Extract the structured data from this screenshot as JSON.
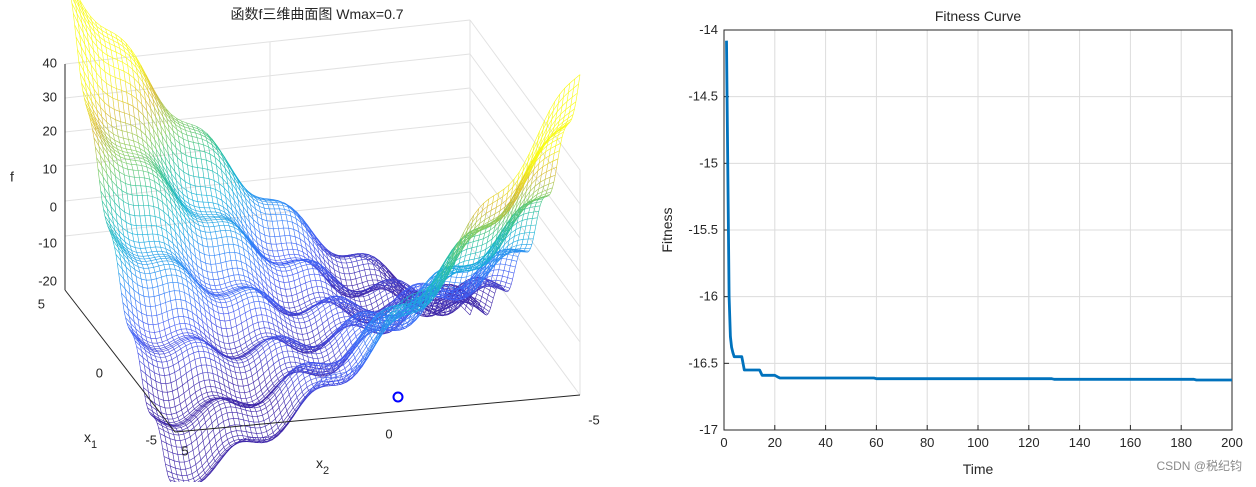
{
  "watermark": "CSDN @税纪钧",
  "colors": {
    "line": "#0072BD",
    "grid": "#dcdcdc",
    "axis": "#262626",
    "marker": "#0000ff"
  },
  "chart_data": [
    {
      "type": "surface",
      "title": "函数f三维曲面图 Wmax=0.7",
      "xlabel_main": "x",
      "xlabel_sub": "2",
      "ylabel_main": "x",
      "ylabel_sub": "1",
      "zlabel": "f",
      "x_ticks": [
        "5",
        "0",
        "-5"
      ],
      "y_ticks": [
        "5",
        "0",
        "-5"
      ],
      "z_ticks": [
        "40",
        "30",
        "20",
        "10",
        "0",
        "-10",
        "-20"
      ],
      "xlim": [
        -5,
        5
      ],
      "ylim": [
        -5,
        5
      ],
      "zlim": [
        -20,
        40
      ],
      "colormap": "parula",
      "style": "mesh",
      "marker": {
        "shape": "circle"
      }
    },
    {
      "type": "line",
      "title": "Fitness Curve",
      "xlabel": "Time",
      "ylabel": "Fitness",
      "xlim": [
        0,
        200
      ],
      "ylim": [
        -17,
        -14
      ],
      "grid": true,
      "x_ticks": [
        "0",
        "20",
        "40",
        "60",
        "80",
        "100",
        "120",
        "140",
        "160",
        "180",
        "200"
      ],
      "y_ticks": [
        "-14",
        "-14.5",
        "-15",
        "-15.5",
        "-16",
        "-16.5",
        "-17"
      ],
      "series": [
        {
          "x": [
            1,
            2,
            2.5,
            3,
            3.5,
            4,
            7,
            8,
            14,
            15,
            20,
            21,
            22,
            23,
            30,
            40,
            50,
            59,
            60,
            80,
            100,
            120,
            129,
            130,
            140,
            160,
            180,
            185,
            186,
            200
          ],
          "y": [
            -14.08,
            -16.0,
            -16.3,
            -16.38,
            -16.42,
            -16.45,
            -16.45,
            -16.55,
            -16.55,
            -16.59,
            -16.59,
            -16.6,
            -16.61,
            -16.61,
            -16.61,
            -16.61,
            -16.61,
            -16.61,
            -16.615,
            -16.615,
            -16.615,
            -16.615,
            -16.615,
            -16.62,
            -16.62,
            -16.62,
            -16.62,
            -16.62,
            -16.625,
            -16.625
          ]
        }
      ]
    }
  ]
}
